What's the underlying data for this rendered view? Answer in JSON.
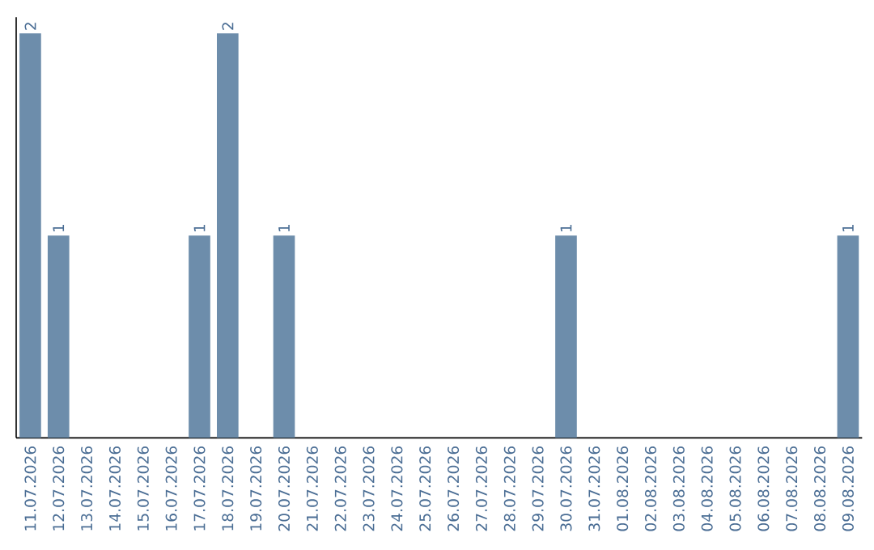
{
  "chart_data": {
    "type": "bar",
    "categories": [
      "11.07.2026",
      "12.07.2026",
      "13.07.2026",
      "14.07.2026",
      "15.07.2026",
      "16.07.2026",
      "17.07.2026",
      "18.07.2026",
      "19.07.2026",
      "20.07.2026",
      "21.07.2026",
      "22.07.2026",
      "23.07.2026",
      "24.07.2026",
      "25.07.2026",
      "26.07.2026",
      "27.07.2026",
      "28.07.2026",
      "29.07.2026",
      "30.07.2026",
      "31.07.2026",
      "01.08.2026",
      "02.08.2026",
      "03.08.2026",
      "04.08.2026",
      "05.08.2026",
      "06.08.2026",
      "07.08.2026",
      "08.08.2026",
      "09.08.2026"
    ],
    "values": [
      2,
      1,
      0,
      0,
      0,
      0,
      1,
      2,
      0,
      1,
      0,
      0,
      0,
      0,
      0,
      0,
      0,
      0,
      0,
      1,
      0,
      0,
      0,
      0,
      0,
      0,
      0,
      0,
      0,
      1
    ],
    "color": "#6d8dab",
    "value_labels": [
      "2",
      "1",
      null,
      null,
      null,
      null,
      "1",
      "2",
      null,
      "1",
      null,
      null,
      null,
      null,
      null,
      null,
      null,
      null,
      null,
      "1",
      null,
      null,
      null,
      null,
      null,
      null,
      null,
      null,
      null,
      "1"
    ]
  }
}
